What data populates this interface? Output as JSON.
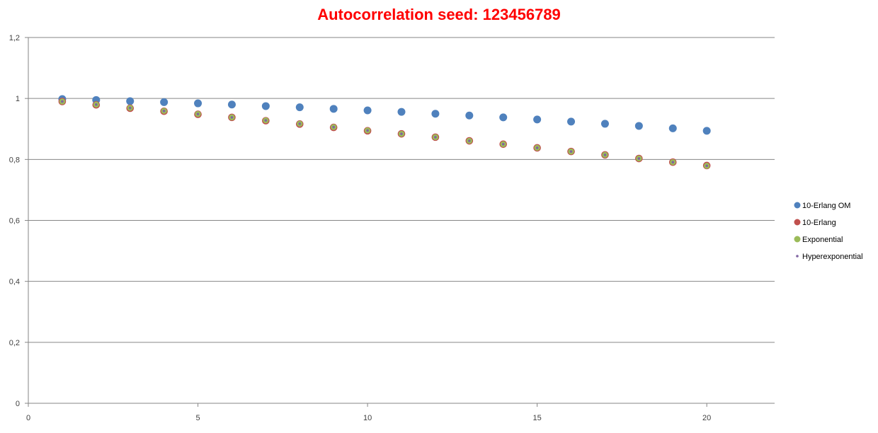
{
  "chart_data": {
    "type": "scatter",
    "title": "Autocorrelation seed: 123456789",
    "xlabel": "",
    "ylabel": "",
    "xlim": [
      0,
      22
    ],
    "ylim": [
      0,
      1.2
    ],
    "x_ticks": [
      0,
      5,
      10,
      15,
      20
    ],
    "y_ticks": [
      0,
      0.2,
      0.4,
      0.6,
      0.8,
      1,
      1.2
    ],
    "x_tick_labels": [
      "0",
      "5",
      "10",
      "15",
      "20"
    ],
    "y_tick_labels": [
      "0",
      "0,2",
      "0,4",
      "0,6",
      "0,8",
      "1",
      "1,2"
    ],
    "grid": "horizontal",
    "legend_position": "right",
    "title_color": "#ff0000",
    "series": [
      {
        "name": "10-Erlang OM",
        "color": "#4f81bd",
        "marker": "large-circle",
        "x": [
          1,
          2,
          3,
          4,
          5,
          6,
          7,
          8,
          9,
          10,
          11,
          12,
          13,
          14,
          15,
          16,
          17,
          18,
          19,
          20
        ],
        "y": [
          0.998,
          0.995,
          0.991,
          0.988,
          0.984,
          0.98,
          0.975,
          0.971,
          0.966,
          0.961,
          0.956,
          0.95,
          0.944,
          0.938,
          0.931,
          0.924,
          0.917,
          0.91,
          0.902,
          0.894
        ]
      },
      {
        "name": "10-Erlang",
        "color": "#c0504d",
        "marker": "circle",
        "x": [
          1,
          2,
          3,
          4,
          5,
          6,
          7,
          8,
          9,
          10,
          11,
          12,
          13,
          14,
          15,
          16,
          17,
          18,
          19,
          20
        ],
        "y": [
          0.99,
          0.979,
          0.968,
          0.958,
          0.948,
          0.938,
          0.927,
          0.916,
          0.905,
          0.894,
          0.884,
          0.873,
          0.861,
          0.85,
          0.838,
          0.826,
          0.815,
          0.803,
          0.791,
          0.78
        ]
      },
      {
        "name": "Exponential",
        "color": "#9bbb59",
        "marker": "circle",
        "x": [
          1,
          2,
          3,
          4,
          5,
          6,
          7,
          8,
          9,
          10,
          11,
          12,
          13,
          14,
          15,
          16,
          17,
          18,
          19,
          20
        ],
        "y": [
          0.99,
          0.98,
          0.969,
          0.959,
          0.949,
          0.938,
          0.928,
          0.917,
          0.906,
          0.895,
          0.884,
          0.873,
          0.861,
          0.85,
          0.838,
          0.826,
          0.815,
          0.803,
          0.791,
          0.779
        ]
      },
      {
        "name": "Hyperexponential",
        "color": "#8064a2",
        "marker": "small-dot",
        "x": [
          1,
          2,
          3,
          4,
          5,
          6,
          7,
          8,
          9,
          10,
          11,
          12,
          13,
          14,
          15,
          16,
          17,
          18,
          19,
          20
        ],
        "y": [
          0.99,
          0.98,
          0.969,
          0.959,
          0.949,
          0.938,
          0.928,
          0.917,
          0.906,
          0.895,
          0.884,
          0.873,
          0.861,
          0.85,
          0.838,
          0.826,
          0.815,
          0.803,
          0.791,
          0.779
        ]
      }
    ]
  }
}
